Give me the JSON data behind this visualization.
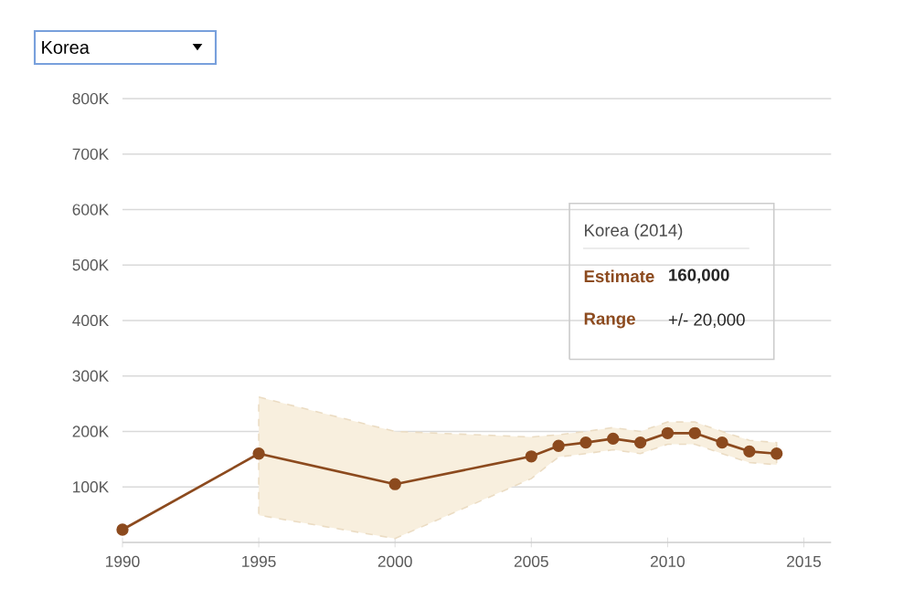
{
  "chart_data": {
    "type": "line",
    "x": [
      1990,
      1995,
      2000,
      2005,
      2006,
      2007,
      2008,
      2009,
      2010,
      2011,
      2012,
      2013,
      2014
    ],
    "series": [
      {
        "color": "#8c4a1e",
        "values": [
          23000,
          160000,
          105000,
          155000,
          174000,
          180000,
          187000,
          180000,
          197000,
          197000,
          180000,
          164000,
          160000
        ],
        "lower": [
          null,
          49000,
          7000,
          115000,
          154000,
          160000,
          167000,
          160000,
          177000,
          177000,
          160000,
          144000,
          140000
        ],
        "upper": [
          null,
          262000,
          200000,
          190000,
          194000,
          200000,
          207000,
          200000,
          217000,
          217000,
          200000,
          184000,
          180000
        ]
      }
    ],
    "xlim": [
      1990,
      2016
    ],
    "ylim": [
      0,
      800000
    ],
    "xticks": [
      1990,
      1995,
      2000,
      2005,
      2010,
      2015
    ],
    "yticks": [
      {
        "value": 100000,
        "label": "100K"
      },
      {
        "value": 200000,
        "label": "200K"
      },
      {
        "value": 300000,
        "label": "300K"
      },
      {
        "value": 400000,
        "label": "400K"
      },
      {
        "value": 500000,
        "label": "500K"
      },
      {
        "value": 600000,
        "label": "600K"
      },
      {
        "value": 700000,
        "label": "700K"
      },
      {
        "value": 800000,
        "label": "800K"
      }
    ],
    "grid": "y",
    "marker": "circle",
    "line_style": "solid",
    "annotations": [
      "Korea",
      "Korea (2014)",
      "Estimate",
      "160,000",
      "Range",
      "+/- 20,000"
    ]
  }
}
